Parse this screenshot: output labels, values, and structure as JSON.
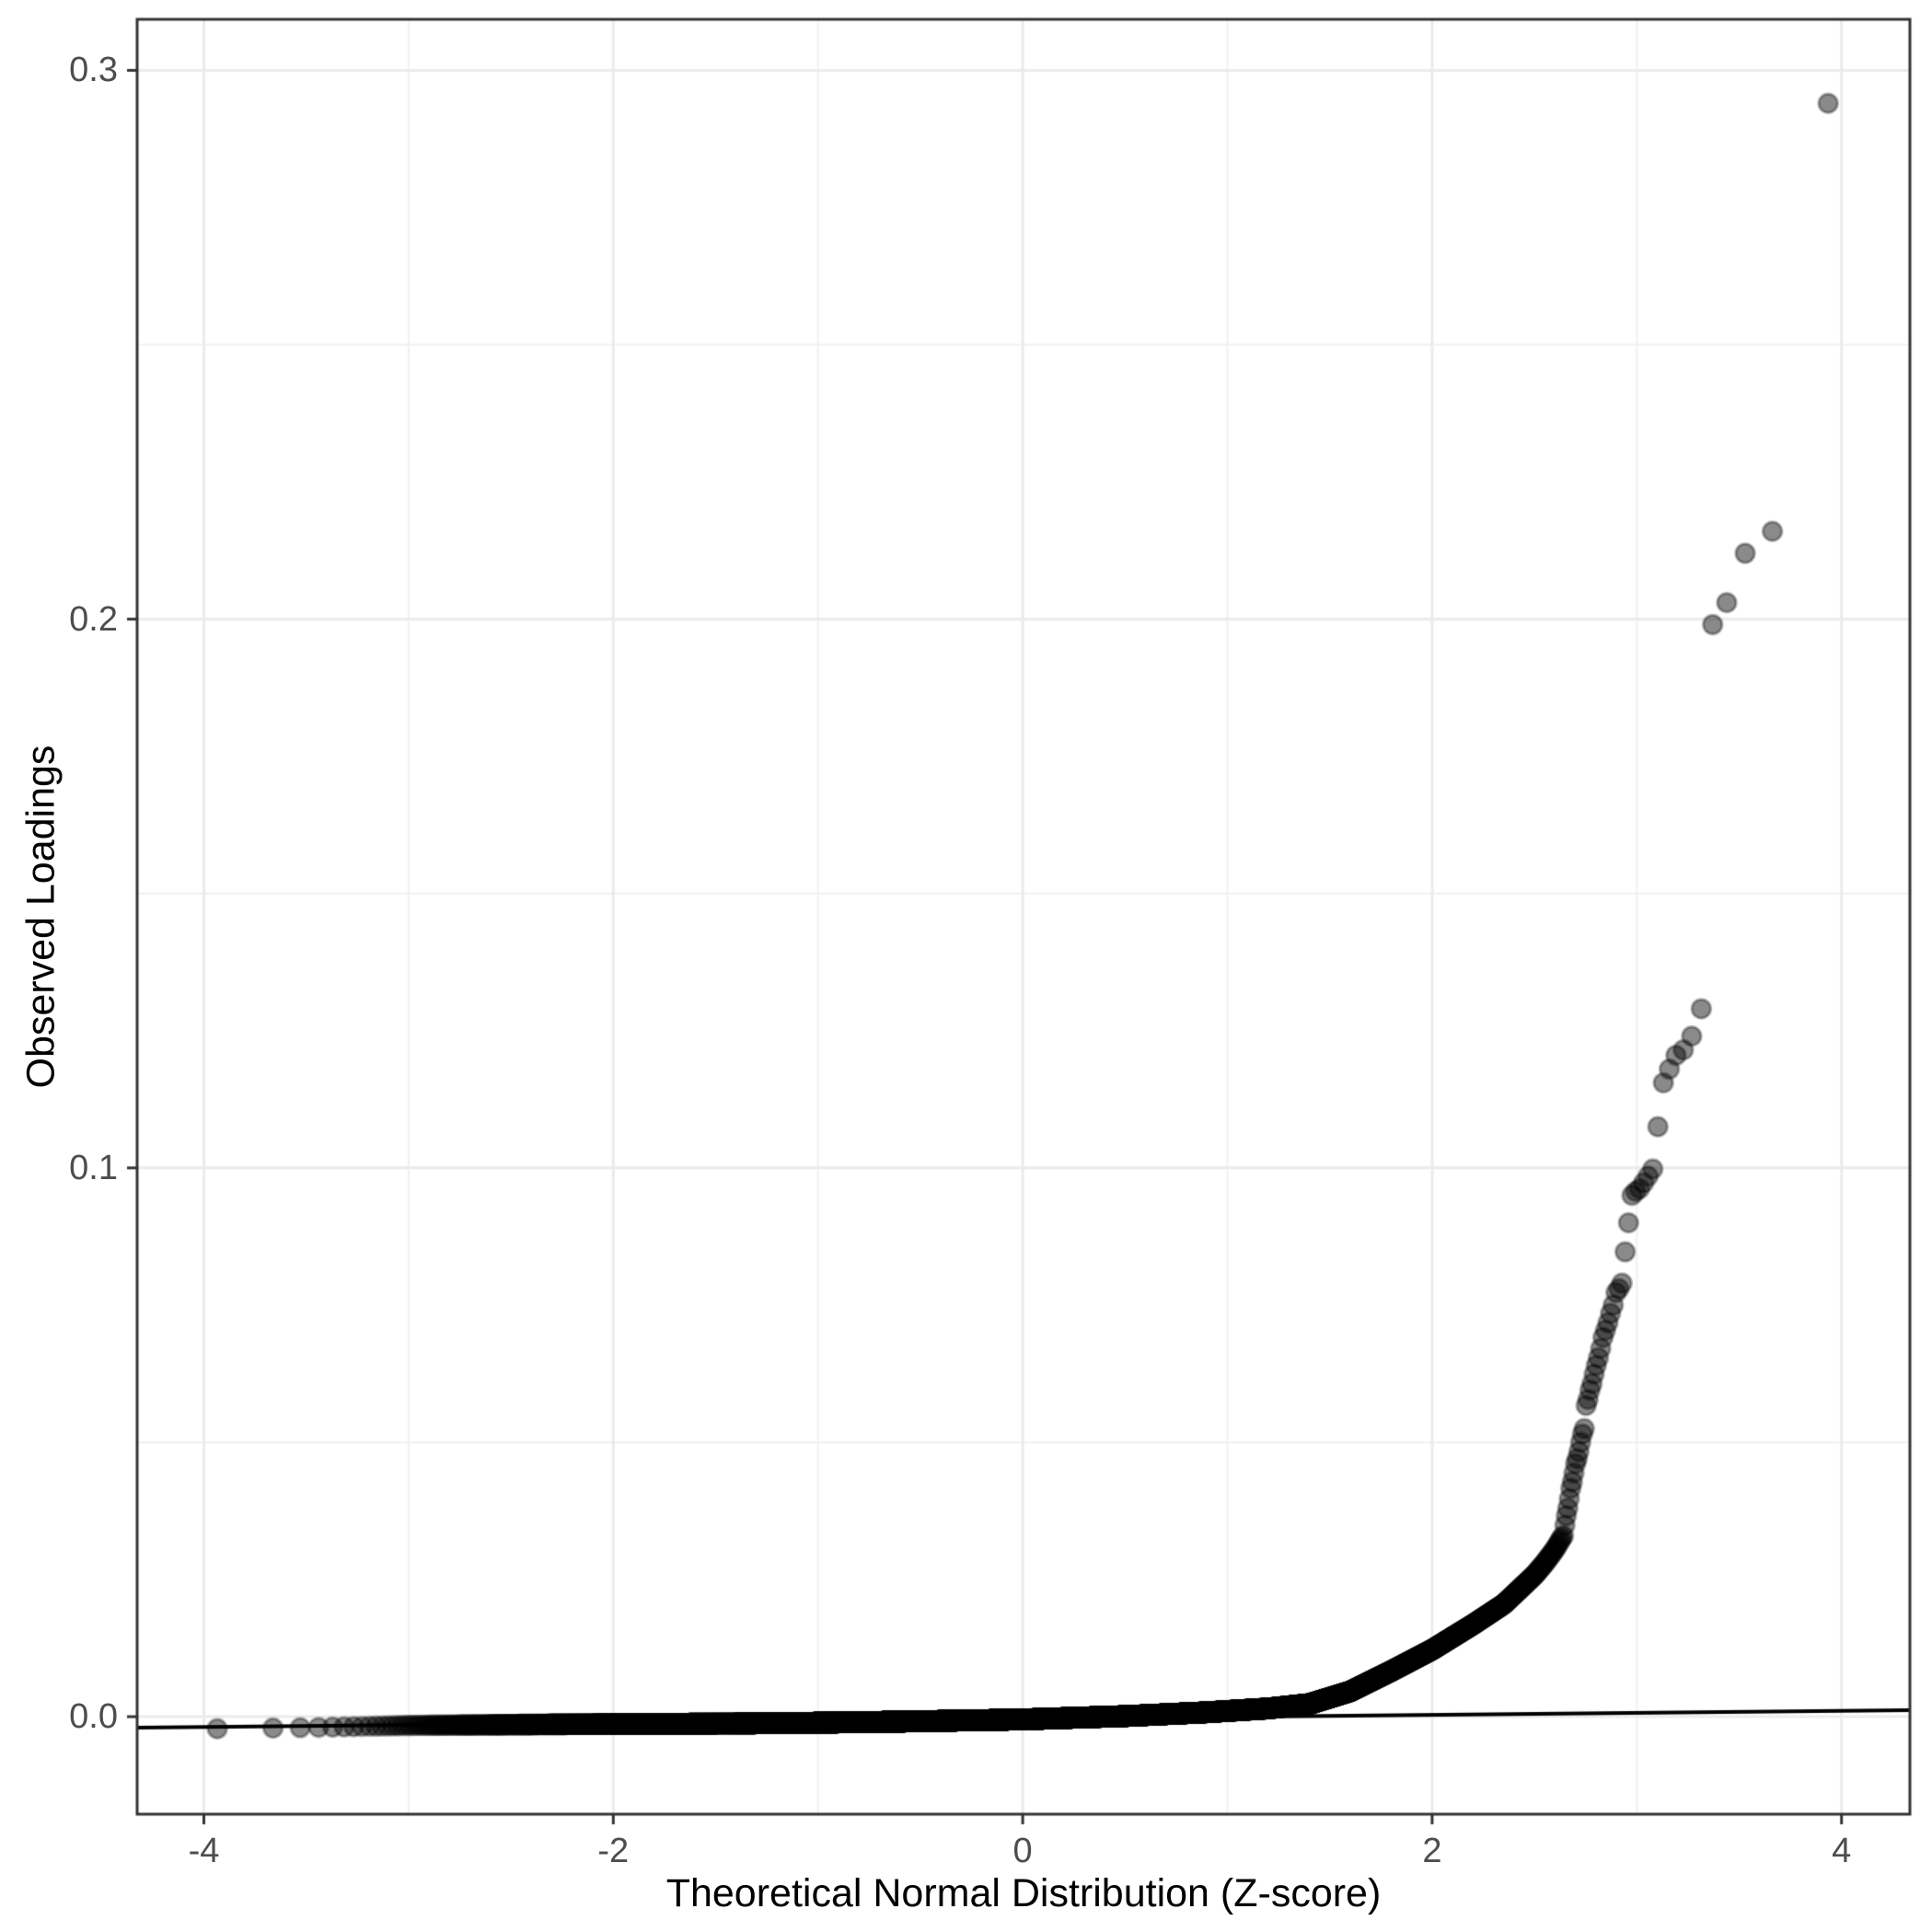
{
  "chart_data": {
    "type": "scatter",
    "subtype": "qq-plot",
    "title": "",
    "xlabel": "Theoretical Normal Distribution (Z-score)",
    "ylabel": "Observed Loadings",
    "xlim": [
      -4.326,
      4.334
    ],
    "ylim": [
      -0.01777,
      0.3093
    ],
    "grid": "on",
    "legend": "none",
    "x_ticks": [
      {
        "value": -4,
        "label": "-4"
      },
      {
        "value": -2,
        "label": "-2"
      },
      {
        "value": 0,
        "label": "0"
      },
      {
        "value": 2,
        "label": "2"
      },
      {
        "value": 4,
        "label": "4"
      }
    ],
    "y_ticks": [
      {
        "value": 0.0,
        "label": "0.0"
      },
      {
        "value": 0.1,
        "label": "0.1"
      },
      {
        "value": 0.2,
        "label": "0.2"
      },
      {
        "value": 0.3,
        "label": "0.3"
      }
    ],
    "x_minor": [
      -3,
      -1,
      1,
      3
    ],
    "y_minor": [
      0.05,
      0.15,
      0.25
    ],
    "n_sample": 12000,
    "qq_curve_anchors": [
      [
        -3.94,
        -0.0022
      ],
      [
        -3.5,
        -0.002
      ],
      [
        -3.0,
        -0.0016
      ],
      [
        -2.3,
        -0.0014
      ],
      [
        -1.2,
        -0.0012
      ],
      [
        -0.6,
        -0.0009
      ],
      [
        0.0,
        -0.0005
      ],
      [
        0.5,
        0.0001
      ],
      [
        0.9,
        0.0008
      ],
      [
        1.2,
        0.0015
      ],
      [
        1.4,
        0.0023
      ],
      [
        1.6,
        0.0046
      ],
      [
        1.8,
        0.0083
      ],
      [
        2.0,
        0.0122
      ],
      [
        2.2,
        0.0168
      ],
      [
        2.35,
        0.0205
      ],
      [
        2.5,
        0.0258
      ],
      [
        2.55,
        0.028
      ],
      [
        2.6,
        0.0305
      ],
      [
        2.64,
        0.033
      ]
    ],
    "top_values": [
      0.294,
      0.216,
      0.212,
      0.203,
      0.199,
      0.129,
      0.124,
      0.1215,
      0.1205,
      0.118,
      0.1155,
      0.1075,
      0.0998,
      0.0985,
      0.0973,
      0.0962,
      0.0957,
      0.095,
      0.09,
      0.0847,
      0.079,
      0.078,
      0.0773,
      0.075,
      0.0735,
      0.0718,
      0.0704,
      0.0691,
      0.0671,
      0.0654,
      0.064,
      0.0624,
      0.0607,
      0.0595,
      0.0578,
      0.0567,
      0.0525,
      0.0515,
      0.05,
      0.0483,
      0.047,
      0.0461,
      0.0444,
      0.0428,
      0.0416,
      0.0397,
      0.038,
      0.0366,
      0.0349
    ],
    "reference_line": {
      "intercept": -0.0004,
      "slope": 0.00037
    },
    "style": {
      "background": "#FFFFFF",
      "grid_major_color": "#EBEBEB",
      "grid_minor_color": "#F1F1F1",
      "panel_border_color": "#333333",
      "tick_color": "#333333",
      "tick_label_color": "#4D4D4D",
      "axis_title_color": "#000000",
      "ref_line_color": "#000000",
      "point_fill": "rgba(0,0,0,0.46)",
      "point_stroke": "rgba(0,0,0,0.30)",
      "point_radius": 10.3
    }
  }
}
